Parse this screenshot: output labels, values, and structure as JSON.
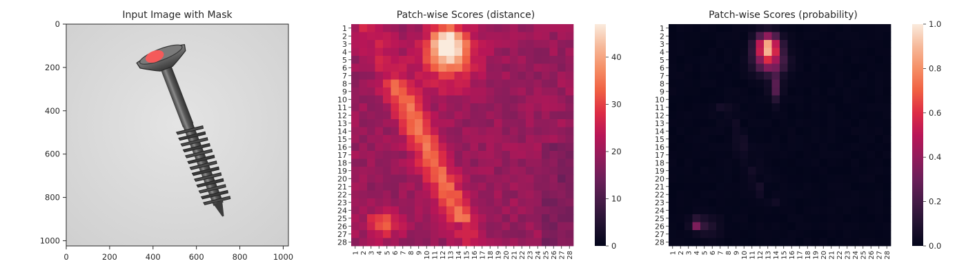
{
  "chart_data": [
    {
      "type": "image",
      "title": "Input Image with Mask",
      "xlim": [
        0,
        1024
      ],
      "ylim": [
        1024,
        0
      ],
      "xticks": [
        0,
        200,
        400,
        600,
        800,
        1000
      ],
      "yticks": [
        0,
        200,
        400,
        600,
        800,
        1000
      ],
      "colors": {
        "background": "#d8d8d8",
        "object": "#5e5e5e",
        "mask": "#f45a5a"
      }
    },
    {
      "type": "heatmap",
      "title": "Patch-wise Scores (distance)",
      "xcategories": [
        "1",
        "2",
        "3",
        "4",
        "5",
        "6",
        "7",
        "8",
        "9",
        "10",
        "11",
        "12",
        "13",
        "14",
        "15",
        "16",
        "17",
        "18",
        "19",
        "20",
        "21",
        "22",
        "23",
        "24",
        "25",
        "26",
        "27",
        "28"
      ],
      "ycategories": [
        "1",
        "2",
        "3",
        "4",
        "5",
        "6",
        "7",
        "8",
        "9",
        "10",
        "11",
        "12",
        "13",
        "14",
        "15",
        "16",
        "17",
        "18",
        "19",
        "20",
        "21",
        "22",
        "23",
        "24",
        "25",
        "26",
        "27",
        "28"
      ],
      "colorbar": {
        "min": 0,
        "max": 47,
        "ticks": [
          0,
          10,
          20,
          30,
          40
        ],
        "cmap": "rocket"
      }
    },
    {
      "type": "heatmap",
      "title": "Patch-wise Scores (probability)",
      "xcategories": [
        "1",
        "2",
        "3",
        "4",
        "5",
        "6",
        "7",
        "8",
        "9",
        "10",
        "11",
        "12",
        "13",
        "14",
        "15",
        "16",
        "17",
        "18",
        "19",
        "20",
        "21",
        "22",
        "23",
        "24",
        "25",
        "26",
        "27",
        "28"
      ],
      "ycategories": [
        "1",
        "2",
        "3",
        "4",
        "5",
        "6",
        "7",
        "8",
        "9",
        "10",
        "11",
        "12",
        "13",
        "14",
        "15",
        "16",
        "17",
        "18",
        "19",
        "20",
        "21",
        "22",
        "23",
        "24",
        "25",
        "26",
        "27",
        "28"
      ],
      "colorbar": {
        "min": 0,
        "max": 1,
        "ticks": [
          "0.0",
          "0.2",
          "0.4",
          "0.6",
          "0.8",
          "1.0"
        ],
        "cmap": "rocket"
      }
    }
  ]
}
